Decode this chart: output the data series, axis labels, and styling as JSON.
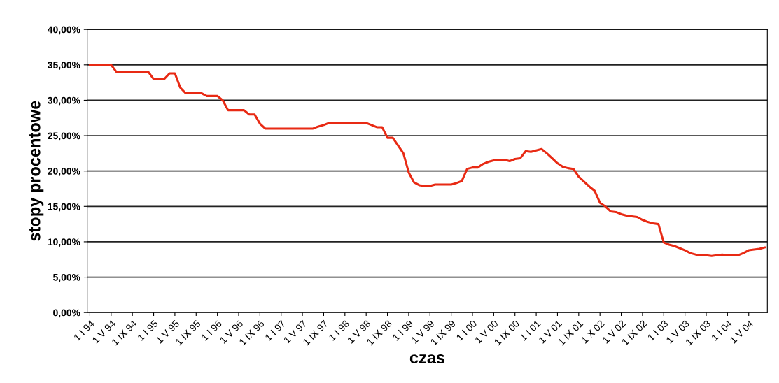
{
  "chart_data": {
    "type": "line",
    "xlabel": "czas",
    "ylabel": "stopy procentowe",
    "categories": [
      "1 I 94",
      null,
      null,
      null,
      "1 V 94",
      null,
      null,
      null,
      "1 IX 94",
      null,
      null,
      null,
      "1 I 95",
      null,
      null,
      null,
      "1 V 95",
      null,
      null,
      null,
      "1 IX 95",
      null,
      null,
      null,
      "1 I 96",
      null,
      null,
      null,
      "1 V 96",
      null,
      null,
      null,
      "1 IX 96",
      null,
      null,
      null,
      "1 I 97",
      null,
      null,
      null,
      "1 V 97",
      null,
      null,
      null,
      "1 IX 97",
      null,
      null,
      null,
      "1 I 98",
      null,
      null,
      null,
      "1 V 98",
      null,
      null,
      null,
      "1 IX 98",
      null,
      null,
      null,
      "1 I 99",
      null,
      null,
      null,
      "1 V 99",
      null,
      null,
      null,
      "1 IX 99",
      null,
      null,
      null,
      "1 I 00",
      null,
      null,
      null,
      "1 V 00",
      null,
      null,
      null,
      "1 IX 00",
      null,
      null,
      null,
      "1 I 01",
      null,
      null,
      null,
      "1 V 01",
      null,
      null,
      null,
      "1 IX 01",
      null,
      null,
      null,
      "1 X 02",
      null,
      null,
      null,
      "1 V 02",
      null,
      null,
      null,
      "1 IX 02",
      null,
      null,
      null,
      "1 I 03",
      null,
      null,
      null,
      "1 V 03",
      null,
      null,
      null,
      "1 IX 03",
      null,
      null,
      null,
      "1 I 04",
      null,
      null,
      null,
      "1 V 04",
      null,
      null,
      null
    ],
    "series": [
      {
        "color": "#e82a14",
        "values": [
          35.0,
          35.0,
          35.0,
          35.0,
          35.0,
          34.0,
          34.0,
          34.0,
          34.0,
          34.0,
          34.0,
          34.0,
          33.0,
          33.0,
          33.0,
          33.8,
          33.8,
          31.8,
          31.0,
          31.0,
          31.0,
          31.0,
          30.6,
          30.6,
          30.6,
          30.0,
          28.6,
          28.6,
          28.6,
          28.6,
          28.0,
          28.0,
          26.7,
          26.0,
          26.0,
          26.0,
          26.0,
          26.0,
          26.0,
          26.0,
          26.0,
          26.0,
          26.0,
          26.3,
          26.5,
          26.8,
          26.8,
          26.8,
          26.8,
          26.8,
          26.8,
          26.8,
          26.8,
          26.5,
          26.2,
          26.2,
          24.7,
          24.7,
          23.6,
          22.5,
          19.8,
          18.4,
          18.0,
          17.9,
          17.9,
          18.1,
          18.1,
          18.1,
          18.1,
          18.3,
          18.6,
          20.3,
          20.5,
          20.5,
          21.0,
          21.3,
          21.5,
          21.5,
          21.6,
          21.4,
          21.7,
          21.8,
          22.8,
          22.7,
          22.9,
          23.1,
          22.5,
          21.8,
          21.1,
          20.6,
          20.4,
          20.3,
          19.2,
          18.5,
          17.8,
          17.2,
          15.5,
          15.0,
          14.3,
          14.2,
          13.9,
          13.7,
          13.6,
          13.5,
          13.1,
          12.8,
          12.6,
          12.5,
          9.9,
          9.6,
          9.4,
          9.1,
          8.8,
          8.4,
          8.2,
          8.1,
          8.1,
          8.0,
          8.1,
          8.2,
          8.1,
          8.1,
          8.1,
          8.4,
          8.8,
          8.9,
          9.0,
          9.2
        ]
      }
    ],
    "ylim": [
      0,
      40
    ],
    "yticks": [
      {
        "value": 0,
        "label": "0,00%"
      },
      {
        "value": 5,
        "label": "5,00%"
      },
      {
        "value": 10,
        "label": "10,00%"
      },
      {
        "value": 15,
        "label": "15,00%"
      },
      {
        "value": 20,
        "label": "20,00%"
      },
      {
        "value": 25,
        "label": "25,00%"
      },
      {
        "value": 30,
        "label": "30,00%"
      },
      {
        "value": 35,
        "label": "35,00%"
      },
      {
        "value": 40,
        "label": "40,00%"
      }
    ],
    "grid": "y",
    "marker": "none",
    "line_style": "solid"
  }
}
